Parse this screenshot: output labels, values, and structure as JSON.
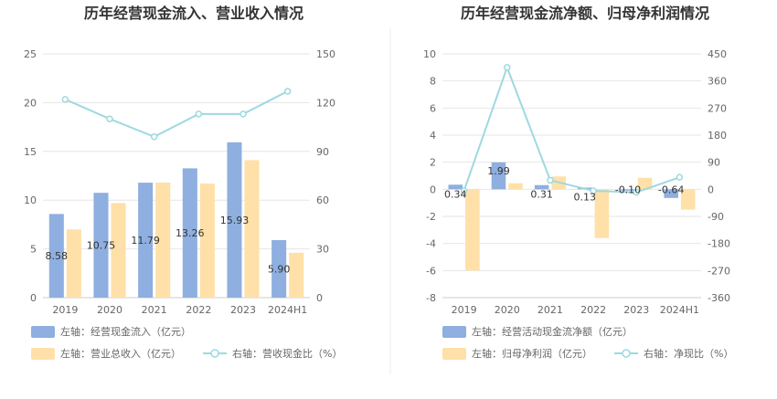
{
  "chart_data": [
    {
      "type": "bar+line",
      "title": "历年经营现金流入、营业收入情况",
      "categories": [
        "2019",
        "2020",
        "2021",
        "2022",
        "2023",
        "2024H1"
      ],
      "y_left": {
        "min": 0,
        "max": 25,
        "ticks": [
          "0",
          "5",
          "10",
          "15",
          "20",
          "25"
        ]
      },
      "y_right": {
        "min": 0,
        "max": 150,
        "ticks": [
          "0",
          "30",
          "60",
          "90",
          "120",
          "150"
        ]
      },
      "series": [
        {
          "name": "左轴：经营现金流入（亿元）",
          "kind": "bar",
          "axis": "left",
          "color": "#8eafdf",
          "values": [
            8.58,
            10.75,
            11.79,
            13.26,
            15.93,
            5.9
          ],
          "labels": [
            "8.58",
            "10.75",
            "11.79",
            "13.26",
            "15.93",
            "5.90"
          ]
        },
        {
          "name": "左轴：营业总收入（亿元）",
          "kind": "bar",
          "axis": "left",
          "color": "#ffe0a8",
          "values": [
            7.0,
            9.7,
            11.8,
            11.7,
            14.1,
            4.6
          ]
        },
        {
          "name": "右轴：营收现金比（%）",
          "kind": "line",
          "axis": "right",
          "color": "#9dd9e0",
          "values": [
            122,
            110,
            99,
            113,
            113,
            127
          ]
        }
      ]
    },
    {
      "type": "bar+line",
      "title": "历年经营现金流净额、归母净利润情况",
      "categories": [
        "2019",
        "2020",
        "2021",
        "2022",
        "2023",
        "2024H1"
      ],
      "y_left": {
        "min": -8,
        "max": 10,
        "ticks": [
          "-8",
          "-6",
          "-4",
          "-2",
          "0",
          "2",
          "4",
          "6",
          "8",
          "10"
        ]
      },
      "y_right": {
        "min": -360,
        "max": 450,
        "ticks": [
          "-360",
          "-270",
          "-180",
          "-90",
          "0",
          "90",
          "180",
          "270",
          "360",
          "450"
        ]
      },
      "series": [
        {
          "name": "左轴：经营活动现金流净额（亿元）",
          "kind": "bar",
          "axis": "left",
          "color": "#8eafdf",
          "values": [
            0.34,
            1.99,
            0.31,
            0.13,
            -0.1,
            -0.64
          ],
          "labels": [
            "0.34",
            "1.99",
            "0.31",
            "0.13",
            "-0.10",
            "-0.64"
          ]
        },
        {
          "name": "左轴：归母净利润（亿元）",
          "kind": "bar",
          "axis": "left",
          "color": "#ffe0a8",
          "values": [
            -6.0,
            0.45,
            0.95,
            -3.6,
            0.85,
            -1.5
          ]
        },
        {
          "name": "右轴：净现比（%）",
          "kind": "line",
          "axis": "right",
          "color": "#9dd9e0",
          "values": [
            -5,
            405,
            30,
            -5,
            -10,
            40
          ]
        }
      ]
    }
  ]
}
